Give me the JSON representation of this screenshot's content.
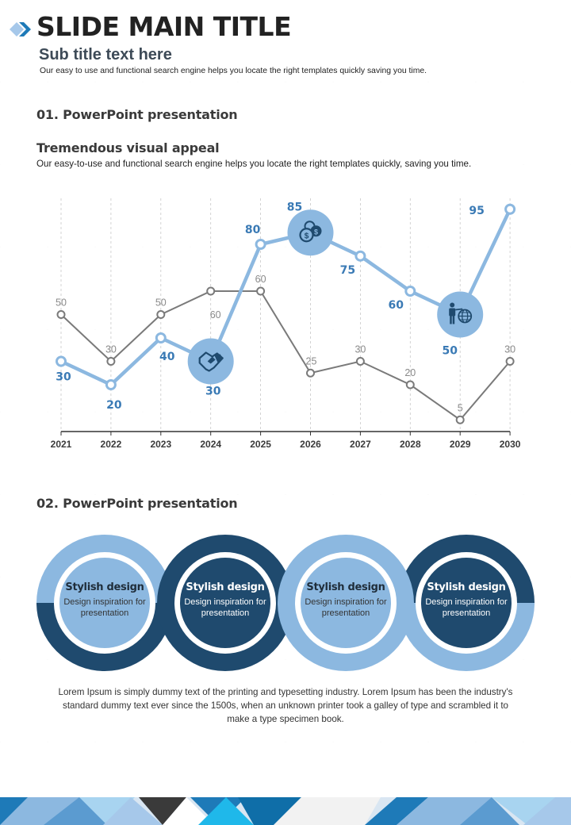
{
  "header": {
    "title": "SLIDE MAIN TITLE",
    "subtitle": "Sub title text here",
    "description": "Our easy to use and functional search engine  helps you locate the right templates quickly saving you time."
  },
  "section1": {
    "heading": "01. PowerPoint presentation",
    "subheading": "Tremendous visual appeal",
    "description": "Our easy-to-use and functional search engine helps you locate the right templates quickly, saving you time."
  },
  "chart_data": {
    "type": "line",
    "title": "",
    "xlabel": "",
    "ylabel": "",
    "ylim": [
      0,
      100
    ],
    "grid": "vertical dashed",
    "categories": [
      "2021",
      "2022",
      "2023",
      "2024",
      "2025",
      "2026",
      "2027",
      "2028",
      "2029",
      "2030"
    ],
    "series": [
      {
        "name": "grey",
        "color": "#7a7a7a",
        "values": [
          50,
          30,
          50,
          60,
          60,
          25,
          30,
          20,
          5,
          30
        ],
        "labels": [
          "50",
          "30",
          "50",
          "60",
          "60",
          "25",
          "30",
          "20",
          "5",
          "30"
        ]
      },
      {
        "name": "blue",
        "color": "#8cb8e0",
        "label_color": "#3a7ab5",
        "values": [
          30,
          20,
          40,
          30,
          80,
          85,
          75,
          60,
          50,
          95
        ],
        "labels": [
          "30",
          "20",
          "40",
          "30",
          "80",
          "85",
          "75",
          "60",
          "50",
          "95"
        ],
        "icon_points": [
          {
            "category": "2024",
            "icon": "handshake-icon"
          },
          {
            "category": "2026",
            "icon": "coins-icon"
          },
          {
            "category": "2029",
            "icon": "presenter-globe-icon"
          }
        ]
      }
    ]
  },
  "section2": {
    "heading": "02. PowerPoint presentation",
    "circles": [
      {
        "title": "Stylish design",
        "subtitle_line1": "Design inspiration for",
        "subtitle_line2": "presentation",
        "style": "light"
      },
      {
        "title": "Stylish design",
        "subtitle_line1": "Design inspiration for",
        "subtitle_line2": "presentation",
        "style": "dark"
      },
      {
        "title": "Stylish design",
        "subtitle_line1": "Design inspiration for",
        "subtitle_line2": "presentation",
        "style": "light"
      },
      {
        "title": "Stylish design",
        "subtitle_line1": "Design inspiration for",
        "subtitle_line2": "presentation",
        "style": "dark"
      }
    ],
    "body": "Lorem Ipsum is simply dummy text of the printing and typesetting industry. Lorem Ipsum has been the industry's standard dummy text ever since the 1500s, when an unknown printer took a galley of type and scrambled it to make a type specimen book."
  },
  "colors": {
    "light_blue": "#8cb8e0",
    "dark_blue": "#1f4a6e",
    "label_blue": "#3a7ab5",
    "grey_line": "#7a7a7a",
    "accent_blue": "#1e7ab8"
  }
}
